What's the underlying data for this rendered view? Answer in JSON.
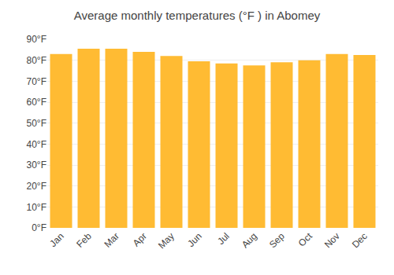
{
  "chart_data": {
    "type": "bar",
    "title": "Average monthly temperatures (°F ) in Abomey",
    "categories": [
      "Jan",
      "Feb",
      "Mar",
      "Apr",
      "May",
      "Jun",
      "Jul",
      "Aug",
      "Sep",
      "Oct",
      "Nov",
      "Dec"
    ],
    "values": [
      83,
      85.5,
      85.5,
      84,
      82,
      79.5,
      78.5,
      77.5,
      79,
      80,
      83,
      82.5
    ],
    "color": "#FFBB33",
    "ylim": [
      0,
      90
    ],
    "yticks": [
      {
        "value": 0,
        "label": "0°F"
      },
      {
        "value": 10,
        "label": "10°F"
      },
      {
        "value": 20,
        "label": "20°F"
      },
      {
        "value": 30,
        "label": "30°F"
      },
      {
        "value": 40,
        "label": "40°F"
      },
      {
        "value": 50,
        "label": "50°F"
      },
      {
        "value": 60,
        "label": "60°F"
      },
      {
        "value": 70,
        "label": "70°F"
      },
      {
        "value": 80,
        "label": "80°F"
      },
      {
        "value": 90,
        "label": "90°F"
      }
    ],
    "grid": true
  }
}
